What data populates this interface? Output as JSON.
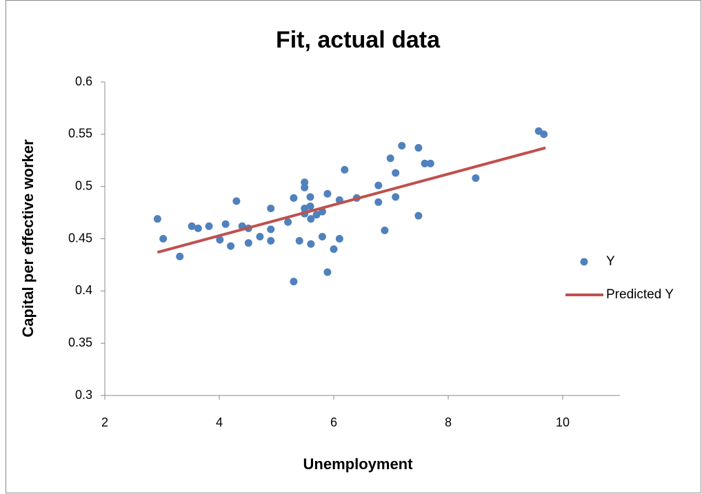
{
  "chart_data": {
    "type": "scatter",
    "title": "Fit, actual data",
    "x_label": "Unemployment",
    "y_label": "Capital per effective worker",
    "xlim": [
      2,
      11
    ],
    "xticks": [
      2,
      4,
      6,
      8,
      10
    ],
    "ylim": [
      0.3,
      0.6
    ],
    "yticks": [
      0.3,
      0.35,
      0.4,
      0.45,
      0.5,
      0.55,
      0.6
    ],
    "legend": "right",
    "series": [
      {
        "name": "Y",
        "color": "#4f81bd",
        "mode": "markers",
        "x": [
          2.92,
          3.02,
          3.31,
          3.52,
          3.63,
          3.82,
          4.01,
          4.11,
          4.2,
          4.3,
          4.4,
          4.51,
          4.51,
          4.71,
          4.9,
          4.9,
          4.9,
          5.2,
          5.3,
          5.3,
          5.4,
          5.49,
          5.49,
          5.49,
          5.49,
          5.59,
          5.59,
          5.6,
          5.6,
          5.7,
          5.8,
          5.8,
          5.89,
          5.89,
          6.0,
          6.1,
          6.1,
          6.19,
          6.4,
          6.78,
          6.78,
          6.89,
          6.99,
          7.08,
          7.08,
          7.19,
          7.48,
          7.48,
          7.59,
          7.69,
          8.48,
          9.58,
          9.67
        ],
        "values": [
          0.469,
          0.45,
          0.433,
          0.462,
          0.46,
          0.462,
          0.449,
          0.464,
          0.443,
          0.486,
          0.462,
          0.46,
          0.446,
          0.452,
          0.479,
          0.459,
          0.448,
          0.466,
          0.489,
          0.409,
          0.448,
          0.504,
          0.499,
          0.479,
          0.474,
          0.481,
          0.49,
          0.469,
          0.445,
          0.473,
          0.476,
          0.452,
          0.418,
          0.493,
          0.44,
          0.487,
          0.45,
          0.516,
          0.489,
          0.501,
          0.485,
          0.458,
          0.527,
          0.513,
          0.49,
          0.539,
          0.537,
          0.472,
          0.522,
          0.522,
          0.508,
          0.553,
          0.55
        ]
      },
      {
        "name": "Predicted Y",
        "color": "#c0504d",
        "mode": "line",
        "x": [
          2.92,
          9.7
        ],
        "values": [
          0.437,
          0.537
        ]
      }
    ]
  }
}
